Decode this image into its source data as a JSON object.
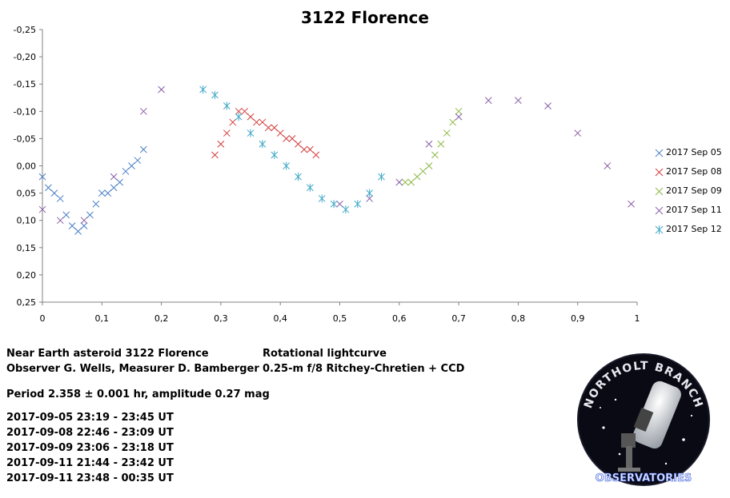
{
  "chart_data": {
    "type": "scatter",
    "title": "3122 Florence",
    "xlim": [
      0,
      1
    ],
    "ylim": [
      -0.25,
      0.25
    ],
    "y_inverted": true,
    "x_ticks": [
      "0",
      "0,1",
      "0,2",
      "0,3",
      "0,4",
      "0,5",
      "0,6",
      "0,7",
      "0,8",
      "0,9",
      "1"
    ],
    "y_ticks": [
      "-0,25",
      "-0,20",
      "-0,15",
      "-0,10",
      "-0,05",
      "0,00",
      "0,05",
      "0,10",
      "0,15",
      "0,20",
      "0,25"
    ],
    "legend_position": "right",
    "series": [
      {
        "name": "2017 Sep 05",
        "color": "#4a7ec8",
        "marker": "x",
        "x": [
          0.0,
          0.01,
          0.02,
          0.03,
          0.04,
          0.05,
          0.06,
          0.07,
          0.08,
          0.09,
          0.1,
          0.11,
          0.12,
          0.13,
          0.14,
          0.15,
          0.16,
          0.17
        ],
        "y": [
          0.02,
          0.04,
          0.05,
          0.06,
          0.09,
          0.11,
          0.12,
          0.11,
          0.09,
          0.07,
          0.05,
          0.05,
          0.04,
          0.03,
          0.01,
          0.0,
          -0.01,
          -0.03
        ]
      },
      {
        "name": "2017 Sep 08",
        "color": "#d33d3d",
        "marker": "x",
        "x": [
          0.29,
          0.3,
          0.31,
          0.32,
          0.33,
          0.34,
          0.35,
          0.36,
          0.37,
          0.38,
          0.39,
          0.4,
          0.41,
          0.42,
          0.43,
          0.44,
          0.45,
          0.46
        ],
        "y": [
          -0.02,
          -0.04,
          -0.06,
          -0.08,
          -0.1,
          -0.1,
          -0.09,
          -0.08,
          -0.08,
          -0.07,
          -0.07,
          -0.06,
          -0.05,
          -0.05,
          -0.04,
          -0.03,
          -0.03,
          -0.02
        ]
      },
      {
        "name": "2017 Sep 09",
        "color": "#8db843",
        "marker": "x",
        "x": [
          0.61,
          0.62,
          0.63,
          0.64,
          0.65,
          0.66,
          0.67,
          0.68,
          0.69,
          0.7
        ],
        "y": [
          0.03,
          0.03,
          0.02,
          0.01,
          0.0,
          -0.02,
          -0.04,
          -0.06,
          -0.08,
          -0.1
        ]
      },
      {
        "name": "2017 Sep 11",
        "color": "#8a5ea8",
        "marker": "x",
        "x": [
          0.0,
          0.03,
          0.07,
          0.12,
          0.17,
          0.2,
          0.5,
          0.55,
          0.6,
          0.65,
          0.7,
          0.75,
          0.8,
          0.85,
          0.9,
          0.95,
          0.99
        ],
        "y": [
          0.08,
          0.1,
          0.1,
          0.02,
          -0.1,
          -0.14,
          0.07,
          0.06,
          0.03,
          -0.04,
          -0.09,
          -0.12,
          -0.12,
          -0.11,
          -0.06,
          0.0,
          0.07
        ]
      },
      {
        "name": "2017 Sep 12",
        "color": "#40a8c8",
        "marker": "*",
        "x": [
          0.27,
          0.29,
          0.31,
          0.33,
          0.35,
          0.37,
          0.39,
          0.41,
          0.43,
          0.45,
          0.47,
          0.49,
          0.51,
          0.53,
          0.55,
          0.57
        ],
        "y": [
          -0.14,
          -0.13,
          -0.11,
          -0.09,
          -0.06,
          -0.04,
          -0.02,
          0.0,
          0.02,
          0.04,
          0.06,
          0.07,
          0.08,
          0.07,
          0.05,
          0.02
        ]
      }
    ]
  },
  "info": {
    "line1": "Near Earth asteroid 3122 Florence",
    "line2": "Observer G. Wells, Measurer D. Bamberger",
    "line3": "Rotational lightcurve",
    "line4": "0.25-m f/8 Ritchey-Chretien + CCD",
    "period": "Period 2.358 ± 0.001 hr, amplitude 0.27 mag",
    "sessions": [
      "2017-09-05 23:19 - 23:45 UT",
      "2017-09-08 22:46 - 23:09 UT",
      "2017-09-09 23:06 - 23:18 UT",
      "2017-09-11 21:44 - 23:42 UT",
      "2017-09-11 23:48 - 00:35 UT"
    ]
  },
  "logo": {
    "top_text": "NORTHOLT BRANCH",
    "bottom_text": "OBSERVATORIES",
    "icon": "telescope-icon"
  }
}
